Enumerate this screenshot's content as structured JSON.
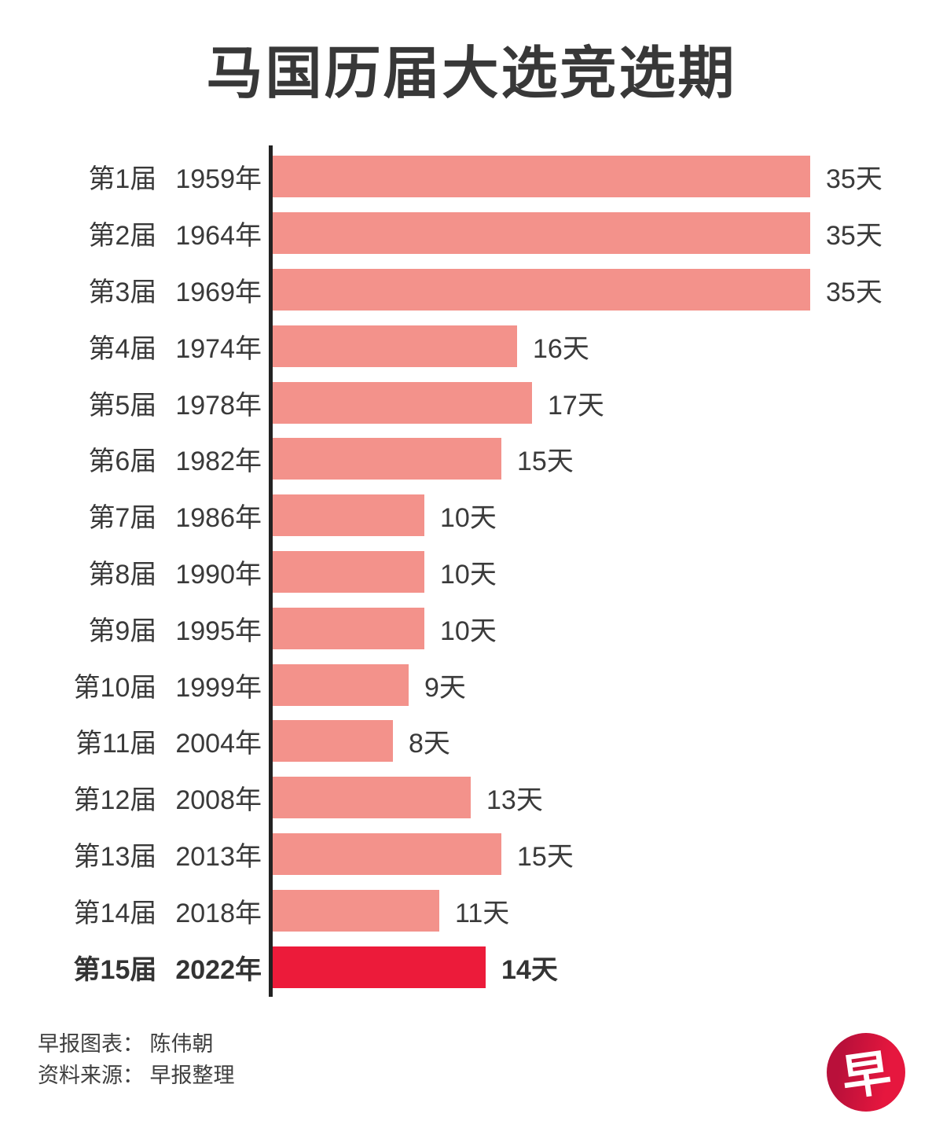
{
  "title": "马国历届大选竞选期",
  "chart_data": {
    "type": "bar",
    "orientation": "horizontal",
    "title": "马国历届大选竞选期",
    "value_unit": "天",
    "xlim": [
      0,
      35
    ],
    "grid": false,
    "legend": false,
    "categories": [
      "第1届 1959年",
      "第2届 1964年",
      "第3届 1969年",
      "第4届 1974年",
      "第5届 1978年",
      "第6届 1982年",
      "第7届 1986年",
      "第8届 1990年",
      "第9届 1995年",
      "第10届 1999年",
      "第11届 2004年",
      "第12届 2008年",
      "第13届 2013年",
      "第14届 2018年",
      "第15届 2022年"
    ],
    "values": [
      35,
      35,
      35,
      16,
      17,
      15,
      10,
      10,
      10,
      9,
      8,
      13,
      15,
      11,
      14
    ],
    "rows": [
      {
        "term": "第1届",
        "year": "1959年",
        "days": 35,
        "value_label": "35天",
        "highlight": false
      },
      {
        "term": "第2届",
        "year": "1964年",
        "days": 35,
        "value_label": "35天",
        "highlight": false
      },
      {
        "term": "第3届",
        "year": "1969年",
        "days": 35,
        "value_label": "35天",
        "highlight": false
      },
      {
        "term": "第4届",
        "year": "1974年",
        "days": 16,
        "value_label": "16天",
        "highlight": false
      },
      {
        "term": "第5届",
        "year": "1978年",
        "days": 17,
        "value_label": "17天",
        "highlight": false
      },
      {
        "term": "第6届",
        "year": "1982年",
        "days": 15,
        "value_label": "15天",
        "highlight": false
      },
      {
        "term": "第7届",
        "year": "1986年",
        "days": 10,
        "value_label": "10天",
        "highlight": false
      },
      {
        "term": "第8届",
        "year": "1990年",
        "days": 10,
        "value_label": "10天",
        "highlight": false
      },
      {
        "term": "第9届",
        "year": "1995年",
        "days": 10,
        "value_label": "10天",
        "highlight": false
      },
      {
        "term": "第10届",
        "year": "1999年",
        "days": 9,
        "value_label": "9天",
        "highlight": false
      },
      {
        "term": "第11届",
        "year": "2004年",
        "days": 8,
        "value_label": "8天",
        "highlight": false
      },
      {
        "term": "第12届",
        "year": "2008年",
        "days": 13,
        "value_label": "13天",
        "highlight": false
      },
      {
        "term": "第13届",
        "year": "2013年",
        "days": 15,
        "value_label": "15天",
        "highlight": false
      },
      {
        "term": "第14届",
        "year": "2018年",
        "days": 11,
        "value_label": "11天",
        "highlight": false
      },
      {
        "term": "第15届",
        "year": "2022年",
        "days": 14,
        "value_label": "14天",
        "highlight": true
      }
    ],
    "colors": {
      "bar": "#F3928B",
      "highlight_bar": "#EC1B3A",
      "axis": "#222222",
      "text": "#3A3A3A"
    }
  },
  "footer": {
    "credit_line": "早报图表： 陈伟朝",
    "source_line": "资料来源： 早报整理"
  },
  "logo": {
    "char": "早",
    "circle_color": "#D8123C"
  }
}
